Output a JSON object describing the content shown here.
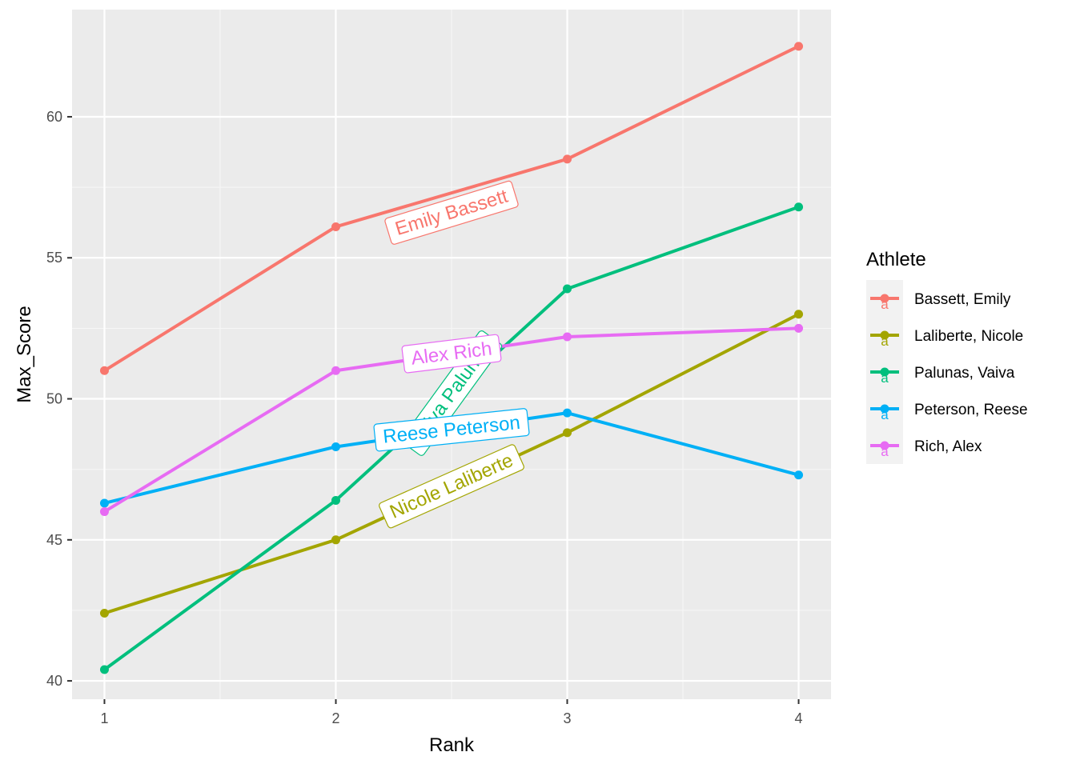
{
  "chart_data": {
    "type": "line",
    "xlabel": "Rank",
    "ylabel": "Max_Score",
    "x": [
      1,
      2,
      3,
      4
    ],
    "xlim": [
      0.86,
      4.14
    ],
    "ylim": [
      39.35,
      63.8
    ],
    "x_ticks": [
      1,
      2,
      3,
      4
    ],
    "y_ticks": [
      40,
      45,
      50,
      55,
      60
    ],
    "grid": true,
    "legend": {
      "title": "Athlete",
      "placement": "right",
      "items": [
        "Bassett, Emily",
        "Laliberte, Nicole",
        "Palunas, Vaiva",
        "Peterson, Reese",
        "Rich, Alex"
      ]
    },
    "series": [
      {
        "name": "Bassett, Emily",
        "values": [
          51.0,
          56.1,
          58.5,
          62.5
        ],
        "color": "#F8766D",
        "label": "Emily Bassett",
        "label_anchor": [
          2.5,
          56.6
        ],
        "label_angle": -17
      },
      {
        "name": "Laliberte, Nicole",
        "values": [
          42.4,
          45.0,
          48.8,
          53.0
        ],
        "color": "#A3A500",
        "label": "Nicole Laliberte",
        "label_anchor": [
          2.5,
          46.9
        ],
        "label_angle": -24
      },
      {
        "name": "Palunas, Vaiva",
        "values": [
          40.4,
          46.4,
          53.9,
          56.8
        ],
        "color": "#00BF7D",
        "label": "Vaiva Palunas",
        "label_anchor": [
          2.5,
          50.2
        ],
        "label_angle": -54
      },
      {
        "name": "Peterson, Reese",
        "values": [
          46.3,
          48.3,
          49.5,
          47.3
        ],
        "color": "#00B0F6",
        "label": "Reese Peterson",
        "label_anchor": [
          2.5,
          48.9
        ],
        "label_angle": -6
      },
      {
        "name": "Rich, Alex",
        "values": [
          46.0,
          51.0,
          52.2,
          52.5
        ],
        "color": "#E76BF3",
        "label": "Alex Rich",
        "label_anchor": [
          2.5,
          51.6
        ],
        "label_angle": -7
      }
    ]
  }
}
